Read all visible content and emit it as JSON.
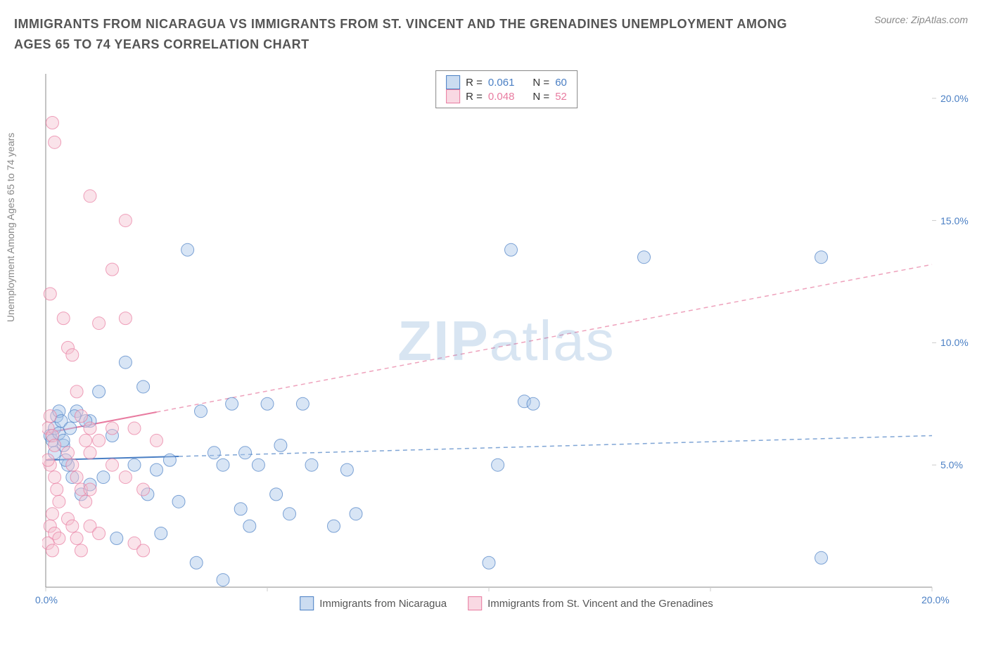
{
  "header": {
    "title": "IMMIGRANTS FROM NICARAGUA VS IMMIGRANTS FROM ST. VINCENT AND THE GRENADINES UNEMPLOYMENT AMONG AGES 65 TO 74 YEARS CORRELATION CHART",
    "source_prefix": "Source: ",
    "source_name": "ZipAtlas.com"
  },
  "chart": {
    "type": "scatter",
    "y_axis_label": "Unemployment Among Ages 65 to 74 years",
    "xlim": [
      0,
      20
    ],
    "ylim": [
      0,
      21
    ],
    "x_ticks": [
      0,
      5,
      10,
      15,
      20
    ],
    "y_ticks": [
      5,
      10,
      15,
      20
    ],
    "x_tick_labels": [
      "0.0%",
      "",
      "",
      "",
      "20.0%"
    ],
    "y_tick_labels": [
      "5.0%",
      "10.0%",
      "15.0%",
      "20.0%"
    ],
    "y_tick_color": "#4a7fc4",
    "x_tick_color": "#4a7fc4",
    "plot_bg": "#ffffff",
    "axis_color": "#888888",
    "tick_color": "#cccccc",
    "marker_radius": 9,
    "marker_opacity": 0.45,
    "marker_stroke_opacity": 0.7,
    "series": [
      {
        "name": "Immigrants from Nicaragua",
        "color": "#4a7fc4",
        "fill": "#a9c5e8",
        "r_label": "R =",
        "r_value": "0.061",
        "n_label": "N =",
        "n_value": "60",
        "trend": {
          "x1": 0,
          "y1": 5.2,
          "x2": 20,
          "y2": 6.2,
          "solid_until": 3.0
        },
        "points": [
          [
            0.1,
            6.2
          ],
          [
            0.2,
            6.5
          ],
          [
            0.15,
            6.0
          ],
          [
            0.3,
            6.3
          ],
          [
            0.25,
            7.0
          ],
          [
            0.4,
            5.8
          ],
          [
            0.2,
            5.5
          ],
          [
            0.3,
            7.2
          ],
          [
            1.0,
            6.8
          ],
          [
            1.2,
            8.0
          ],
          [
            1.5,
            6.2
          ],
          [
            1.8,
            9.2
          ],
          [
            1.0,
            4.2
          ],
          [
            1.3,
            4.5
          ],
          [
            1.6,
            2.0
          ],
          [
            2.0,
            5.0
          ],
          [
            2.2,
            8.2
          ],
          [
            2.5,
            4.8
          ],
          [
            2.3,
            3.8
          ],
          [
            2.8,
            5.2
          ],
          [
            2.6,
            2.2
          ],
          [
            3.0,
            3.5
          ],
          [
            3.2,
            13.8
          ],
          [
            3.5,
            7.2
          ],
          [
            3.8,
            5.5
          ],
          [
            3.4,
            1.0
          ],
          [
            4.0,
            5.0
          ],
          [
            4.0,
            0.3
          ],
          [
            4.2,
            7.5
          ],
          [
            4.5,
            5.5
          ],
          [
            4.8,
            5.0
          ],
          [
            4.4,
            3.2
          ],
          [
            4.6,
            2.5
          ],
          [
            5.0,
            7.5
          ],
          [
            5.2,
            3.8
          ],
          [
            5.5,
            3.0
          ],
          [
            5.8,
            7.5
          ],
          [
            5.3,
            5.8
          ],
          [
            6.0,
            5.0
          ],
          [
            6.5,
            2.5
          ],
          [
            6.8,
            4.8
          ],
          [
            7.0,
            3.0
          ],
          [
            10.0,
            1.0
          ],
          [
            10.2,
            5.0
          ],
          [
            10.5,
            13.8
          ],
          [
            10.8,
            7.6
          ],
          [
            11.0,
            7.5
          ],
          [
            13.5,
            13.5
          ],
          [
            17.5,
            13.5
          ],
          [
            17.5,
            1.2
          ],
          [
            0.5,
            5.0
          ],
          [
            0.6,
            4.5
          ],
          [
            0.8,
            3.8
          ],
          [
            0.9,
            6.8
          ],
          [
            0.7,
            7.2
          ],
          [
            0.4,
            6.0
          ],
          [
            0.35,
            6.8
          ],
          [
            0.45,
            5.2
          ],
          [
            0.55,
            6.5
          ],
          [
            0.65,
            7.0
          ]
        ]
      },
      {
        "name": "Immigrants from St. Vincent and the Grenadines",
        "color": "#e87ba0",
        "fill": "#f5c0d0",
        "r_label": "R =",
        "r_value": "0.048",
        "n_label": "N =",
        "n_value": "52",
        "trend": {
          "x1": 0,
          "y1": 6.3,
          "x2": 20,
          "y2": 13.2,
          "solid_until": 2.5
        },
        "points": [
          [
            0.05,
            6.5
          ],
          [
            0.1,
            7.0
          ],
          [
            0.15,
            6.2
          ],
          [
            0.2,
            5.8
          ],
          [
            0.1,
            5.0
          ],
          [
            0.2,
            4.5
          ],
          [
            0.25,
            4.0
          ],
          [
            0.3,
            3.5
          ],
          [
            0.15,
            3.0
          ],
          [
            0.1,
            2.5
          ],
          [
            0.2,
            2.2
          ],
          [
            0.3,
            2.0
          ],
          [
            0.05,
            1.8
          ],
          [
            0.15,
            1.5
          ],
          [
            0.1,
            12.0
          ],
          [
            0.15,
            19.0
          ],
          [
            0.2,
            18.2
          ],
          [
            0.4,
            11.0
          ],
          [
            0.5,
            9.8
          ],
          [
            0.6,
            9.5
          ],
          [
            0.7,
            8.0
          ],
          [
            0.8,
            7.0
          ],
          [
            0.9,
            6.0
          ],
          [
            0.5,
            5.5
          ],
          [
            0.6,
            5.0
          ],
          [
            0.7,
            4.5
          ],
          [
            0.8,
            4.0
          ],
          [
            0.9,
            3.5
          ],
          [
            0.5,
            2.8
          ],
          [
            0.6,
            2.5
          ],
          [
            0.7,
            2.0
          ],
          [
            0.8,
            1.5
          ],
          [
            1.0,
            16.0
          ],
          [
            1.0,
            6.5
          ],
          [
            1.0,
            5.5
          ],
          [
            1.0,
            4.0
          ],
          [
            1.0,
            2.5
          ],
          [
            1.2,
            10.8
          ],
          [
            1.2,
            6.0
          ],
          [
            1.2,
            2.2
          ],
          [
            1.5,
            13.0
          ],
          [
            1.5,
            6.5
          ],
          [
            1.5,
            5.0
          ],
          [
            1.8,
            15.0
          ],
          [
            1.8,
            11.0
          ],
          [
            1.8,
            4.5
          ],
          [
            2.0,
            6.5
          ],
          [
            2.0,
            1.8
          ],
          [
            2.2,
            4.0
          ],
          [
            2.2,
            1.5
          ],
          [
            2.5,
            6.0
          ],
          [
            0.05,
            5.2
          ]
        ]
      }
    ],
    "watermark": {
      "zip": "ZIP",
      "atlas": "atlas"
    }
  }
}
